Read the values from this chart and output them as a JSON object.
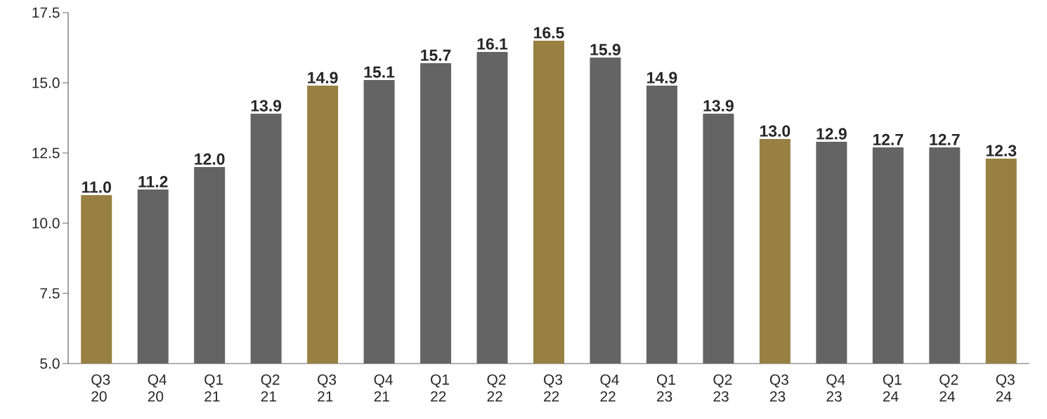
{
  "chart_data": {
    "type": "bar",
    "categories": [
      "Q3 20",
      "Q4 20",
      "Q1 21",
      "Q2 21",
      "Q3 21",
      "Q4 21",
      "Q1 22",
      "Q2 22",
      "Q3 22",
      "Q4 22",
      "Q1 23",
      "Q2 23",
      "Q3 23",
      "Q4 23",
      "Q1 24",
      "Q2 24",
      "Q3 24"
    ],
    "values": [
      11.0,
      11.2,
      12.0,
      13.9,
      14.9,
      15.1,
      15.7,
      16.1,
      16.5,
      15.9,
      14.9,
      13.9,
      13.0,
      12.9,
      12.7,
      12.7,
      12.3
    ],
    "value_labels": [
      "11.0",
      "11.2",
      "12.0",
      "13.9",
      "14.9",
      "15.1",
      "15.7",
      "16.1",
      "16.5",
      "15.9",
      "14.9",
      "13.9",
      "13.0",
      "12.9",
      "12.7",
      "12.7",
      "12.3"
    ],
    "colors": [
      "#978042",
      "#646464",
      "#646464",
      "#646464",
      "#978042",
      "#646464",
      "#646464",
      "#646464",
      "#978042",
      "#646464",
      "#646464",
      "#646464",
      "#978042",
      "#646464",
      "#646464",
      "#646464",
      "#978042"
    ],
    "ylim": [
      5.0,
      17.5
    ],
    "yticks": [
      {
        "value": 5.0,
        "label": "5.0"
      },
      {
        "value": 7.5,
        "label": "7.5"
      },
      {
        "value": 10.0,
        "label": "10.0"
      },
      {
        "value": 12.5,
        "label": "12.5"
      },
      {
        "value": 15.0,
        "label": "15.0"
      },
      {
        "value": 17.5,
        "label": "17.5"
      }
    ]
  }
}
